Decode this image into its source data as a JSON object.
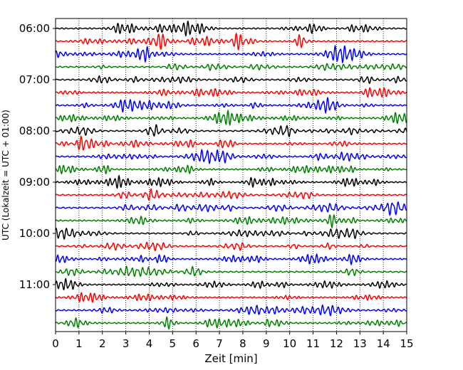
{
  "chart_data": {
    "type": "line",
    "title": "",
    "xlabel": "Zeit  [min]",
    "ylabel": "UTC (Lokalzeit = UTC + 01:00)",
    "xlim": [
      0,
      15
    ],
    "x_ticks": [
      "0",
      "1",
      "2",
      "3",
      "4",
      "5",
      "6",
      "7",
      "8",
      "9",
      "10",
      "11",
      "12",
      "13",
      "14",
      "15"
    ],
    "y_ticks": [
      {
        "label": "06:00",
        "trace": 0
      },
      {
        "label": "07:00",
        "trace": 4
      },
      {
        "label": "08:00",
        "trace": 8
      },
      {
        "label": "09:00",
        "trace": 12
      },
      {
        "label": "10:00",
        "trace": 16
      },
      {
        "label": "11:00",
        "trace": 20
      }
    ],
    "grid": "vertical-dotted",
    "colors": [
      "#000000",
      "#ff0000",
      "#0000ff",
      "#008000"
    ],
    "series_count": 24,
    "minutes_per_trace": 15
  }
}
